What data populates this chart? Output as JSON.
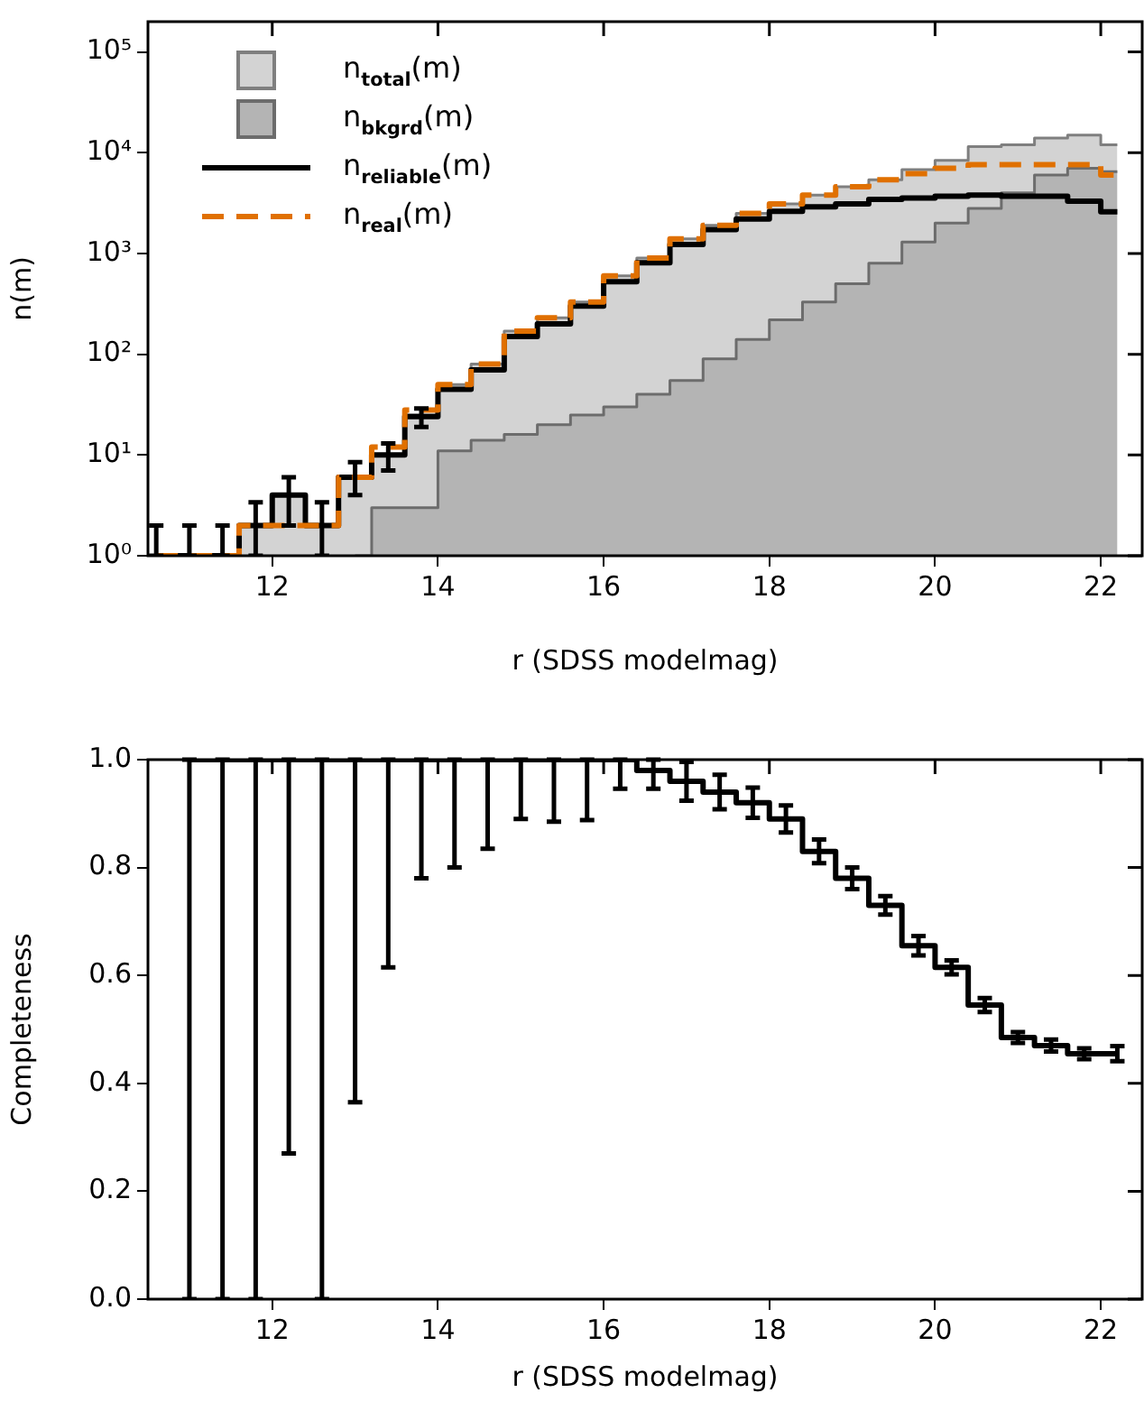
{
  "chart_data": [
    {
      "type": "step",
      "xlabel": "r (SDSS modelmag)",
      "ylabel": "n(m)",
      "log": "y",
      "legend": "top left",
      "xlim": [
        10.5,
        22.5
      ],
      "xticks": [
        12,
        14,
        16,
        18,
        20,
        22
      ],
      "ylim": [
        1,
        200000
      ],
      "yticks": [
        {
          "value": 1,
          "label": "10⁰"
        },
        {
          "value": 10,
          "label": "10¹"
        },
        {
          "value": 100,
          "label": "10²"
        },
        {
          "value": 1000,
          "label": "10³"
        },
        {
          "value": 10000,
          "label": "10⁴"
        },
        {
          "value": 100000,
          "label": "10⁵"
        }
      ],
      "x": [
        10.6,
        11.0,
        11.4,
        11.8,
        12.2,
        12.6,
        13.0,
        13.4,
        13.8,
        14.2,
        14.6,
        15.0,
        15.4,
        15.8,
        16.2,
        16.6,
        17.0,
        17.4,
        17.8,
        18.2,
        18.6,
        19.0,
        19.4,
        19.8,
        20.2,
        20.6,
        21.0,
        21.4,
        21.8,
        22.2
      ],
      "series": [
        {
          "name": "n$_{total}$(m)",
          "type": "area",
          "color": "#d3d3d3",
          "values": [
            1,
            1,
            1,
            2,
            4,
            2,
            6,
            10,
            25,
            50,
            80,
            170,
            230,
            330,
            600,
            900,
            1400,
            1900,
            2500,
            3100,
            3800,
            4600,
            5400,
            6800,
            8400,
            11500,
            12000,
            14000,
            15000,
            12000
          ]
        },
        {
          "name": "n$_{bkgrd}$(m)",
          "type": "area",
          "color": "#b4b4b4",
          "values": [
            null,
            null,
            null,
            null,
            null,
            null,
            1,
            3,
            3,
            11,
            14,
            16,
            20,
            25,
            30,
            40,
            55,
            90,
            140,
            220,
            330,
            500,
            800,
            1300,
            2000,
            2800,
            4000,
            6000,
            7000,
            6500
          ]
        },
        {
          "name": "n$_{reliable}$(m)",
          "type": "step",
          "color": "#000000",
          "values": [
            1,
            1,
            1,
            2,
            4,
            2,
            6,
            10,
            24,
            45,
            70,
            150,
            200,
            300,
            525,
            810,
            1230,
            1730,
            2200,
            2620,
            2900,
            3100,
            3450,
            3550,
            3700,
            3800,
            3700,
            3700,
            3300,
            2600
          ],
          "errors": [
            [
              1,
              2
            ],
            [
              1,
              2
            ],
            [
              1,
              2
            ],
            [
              1,
              3.4
            ],
            [
              2,
              6
            ],
            [
              1,
              3.4
            ],
            [
              4,
              8.5
            ],
            [
              7,
              13
            ],
            [
              19,
              29
            ],
            null,
            null,
            null,
            null,
            null,
            null,
            null,
            null,
            null,
            null,
            null,
            null,
            null,
            null,
            null,
            null,
            null,
            null,
            null,
            null,
            null
          ]
        },
        {
          "name": "n$_{real}$(m)",
          "type": "step",
          "color": "#e07000",
          "line_style": "dashed",
          "values": [
            1,
            1,
            1,
            2,
            2,
            2,
            6,
            12,
            28,
            50,
            80,
            170,
            230,
            330,
            600,
            900,
            1400,
            1900,
            2500,
            3100,
            3800,
            4600,
            5400,
            6200,
            7000,
            7600,
            7600,
            7600,
            7600,
            6000
          ]
        }
      ]
    },
    {
      "type": "step",
      "xlabel": "r (SDSS modelmag)",
      "ylabel": "Completeness",
      "xlim": [
        10.5,
        22.5
      ],
      "xticks": [
        12,
        14,
        16,
        18,
        20,
        22
      ],
      "ylim": [
        0,
        1
      ],
      "yticks": [
        {
          "value": 0,
          "label": "0.0"
        },
        {
          "value": 0.2,
          "label": "0.2"
        },
        {
          "value": 0.4,
          "label": "0.4"
        },
        {
          "value": 0.6,
          "label": "0.6"
        },
        {
          "value": 0.8,
          "label": "0.8"
        },
        {
          "value": 1,
          "label": "1.0"
        }
      ],
      "x": [
        11.0,
        11.4,
        11.8,
        12.2,
        12.6,
        13.0,
        13.4,
        13.8,
        14.2,
        14.6,
        15.0,
        15.4,
        15.8,
        16.2,
        16.6,
        17.0,
        17.4,
        17.8,
        18.2,
        18.6,
        19.0,
        19.4,
        19.8,
        20.2,
        20.6,
        21.0,
        21.4,
        21.8,
        22.2
      ],
      "series": [
        {
          "color": "#000000",
          "values": [
            1,
            1,
            1,
            1,
            1,
            1,
            1,
            1,
            1,
            1,
            1,
            1,
            1,
            1,
            0.98,
            0.96,
            0.94,
            0.92,
            0.89,
            0.83,
            0.78,
            0.73,
            0.655,
            0.615,
            0.545,
            0.485,
            0.47,
            0.455,
            0.455
          ],
          "errors": [
            [
              0,
              1
            ],
            [
              0,
              1
            ],
            [
              0,
              1
            ],
            [
              0.27,
              1
            ],
            [
              0,
              1
            ],
            [
              0.365,
              1
            ],
            [
              0.615,
              1
            ],
            [
              0.78,
              1
            ],
            [
              0.8,
              1
            ],
            [
              0.835,
              1
            ],
            [
              0.89,
              1
            ],
            [
              0.885,
              1
            ],
            [
              0.888,
              1
            ],
            [
              0.946,
              1
            ],
            [
              0.946,
              1
            ],
            0.036,
            0.032,
            0.028,
            0.025,
            0.022,
            0.02,
            0.017,
            0.018,
            0.013,
            0.013,
            0.01,
            0.011,
            0.01,
            0.014
          ]
        }
      ]
    }
  ]
}
